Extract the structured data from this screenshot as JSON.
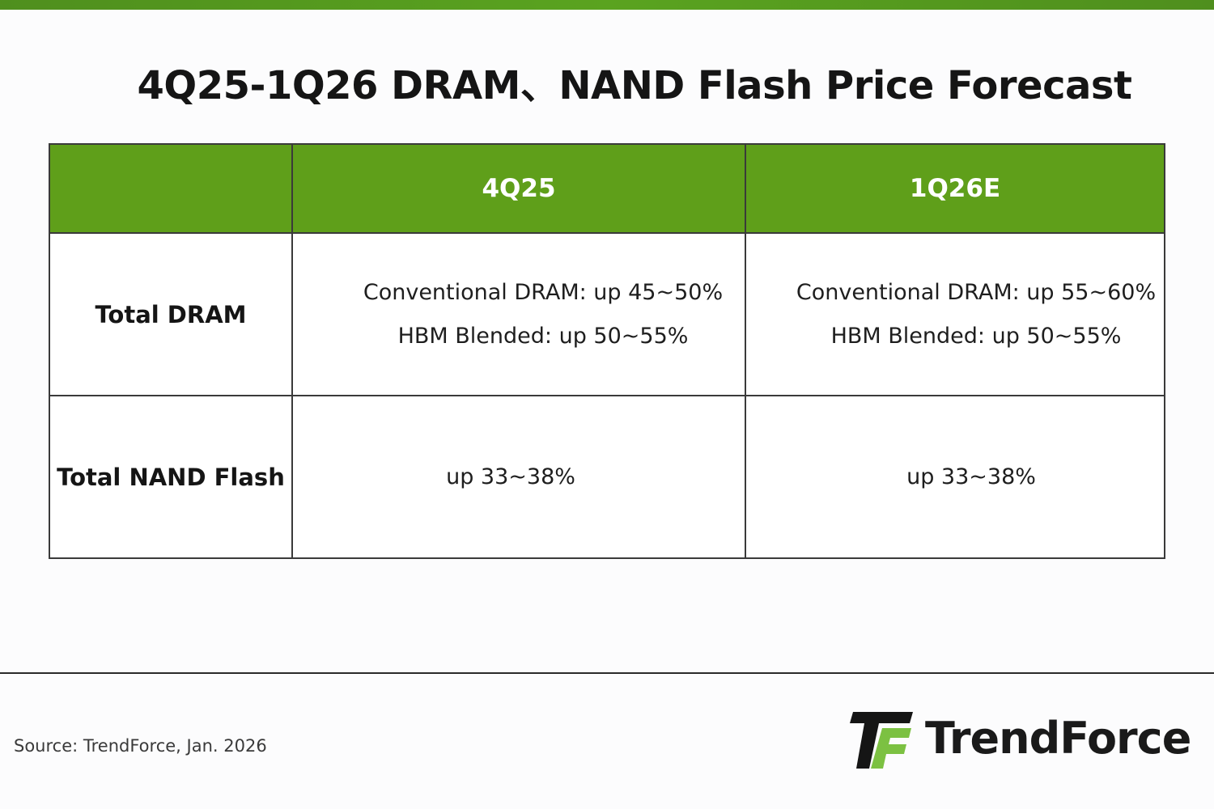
{
  "title": "4Q25-1Q26 DRAM、NAND Flash Price Forecast",
  "table": {
    "columns": [
      "",
      "4Q25",
      "1Q26E"
    ],
    "rows": [
      {
        "label": "Total DRAM",
        "cells": [
          [
            "Conventional DRAM: up 45~50%",
            "HBM Blended: up 50~55%"
          ],
          [
            "Conventional DRAM: up 55~60%",
            "HBM Blended: up 50~55%"
          ]
        ]
      },
      {
        "label": "Total NAND Flash",
        "cells": [
          [
            "up 33~38%"
          ],
          [
            "up 33~38%"
          ]
        ]
      }
    ]
  },
  "footer": {
    "source": "Source: TrendForce, Jan. 2026",
    "logo_text": "TrendForce",
    "logo_icon": "trendforce-logo-icon"
  },
  "colors": {
    "accent": "#5f9f1a",
    "top_bar": "#5aa31f",
    "logo_green": "#7cc142"
  }
}
